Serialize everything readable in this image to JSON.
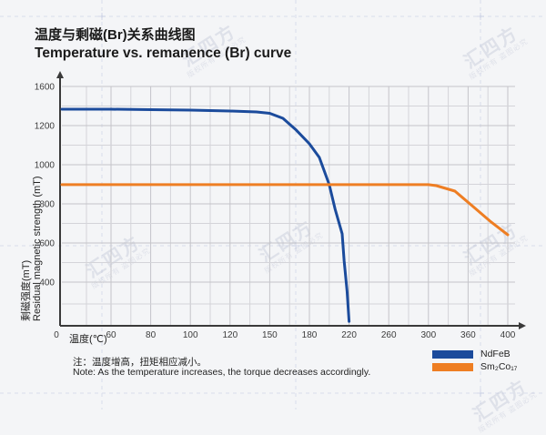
{
  "header": {
    "title_zh": "温度与剩磁(Br)关系曲线图",
    "title_en": "Temperature vs. remanence (Br) curve"
  },
  "note": {
    "zh": "注：温度增高，扭矩相应减小。",
    "en": "Note: As the temperature increases, the torque decreases accordingly."
  },
  "watermark": {
    "text_large": "汇四方",
    "text_small": "版权所有 盗图必究"
  },
  "colors": {
    "ndfeb_blue": "#1b4b9c",
    "smco_orange": "#ee7e23",
    "grid_major": "#c4c4c9",
    "grid_minor": "#d4d4d9",
    "axis": "#3a3a3a",
    "background": "#f4f5f7"
  },
  "chart_data": {
    "type": "line",
    "title": "Temperature vs. remanence (Br) curve",
    "xlabel": "温度(℃)",
    "ylabel_zh": "剩磁强度(mT)",
    "ylabel_en": "Residual magnetic strength (mT)",
    "x_ticks": [
      0,
      60,
      80,
      100,
      120,
      150,
      180,
      220,
      260,
      300,
      360,
      400
    ],
    "y_ticks": [
      1600,
      1200,
      1000,
      800,
      600,
      400
    ],
    "y_origin_label": "0",
    "grid": "on",
    "legend_position": "bottom-right",
    "series": [
      {
        "name": "NdFeB",
        "color": "#1b4b9c",
        "points": [
          [
            0,
            1367
          ],
          [
            60,
            1367
          ],
          [
            80,
            1363
          ],
          [
            100,
            1358
          ],
          [
            120,
            1349
          ],
          [
            140,
            1340
          ],
          [
            150,
            1326
          ],
          [
            160,
            1274
          ],
          [
            170,
            1177
          ],
          [
            180,
            1107
          ],
          [
            190,
            1037
          ],
          [
            200,
            898
          ],
          [
            206,
            772
          ],
          [
            213,
            647
          ],
          [
            215,
            507
          ],
          [
            218,
            317
          ],
          [
            220,
            40
          ]
        ]
      },
      {
        "name": "Sm₂Co₁₇",
        "color": "#ee7e23",
        "points": [
          [
            0,
            898
          ],
          [
            60,
            898
          ],
          [
            120,
            898
          ],
          [
            180,
            898
          ],
          [
            240,
            898
          ],
          [
            300,
            898
          ],
          [
            312,
            893
          ],
          [
            340,
            865
          ],
          [
            365,
            786
          ],
          [
            382,
            712
          ],
          [
            400,
            642
          ]
        ]
      }
    ]
  }
}
